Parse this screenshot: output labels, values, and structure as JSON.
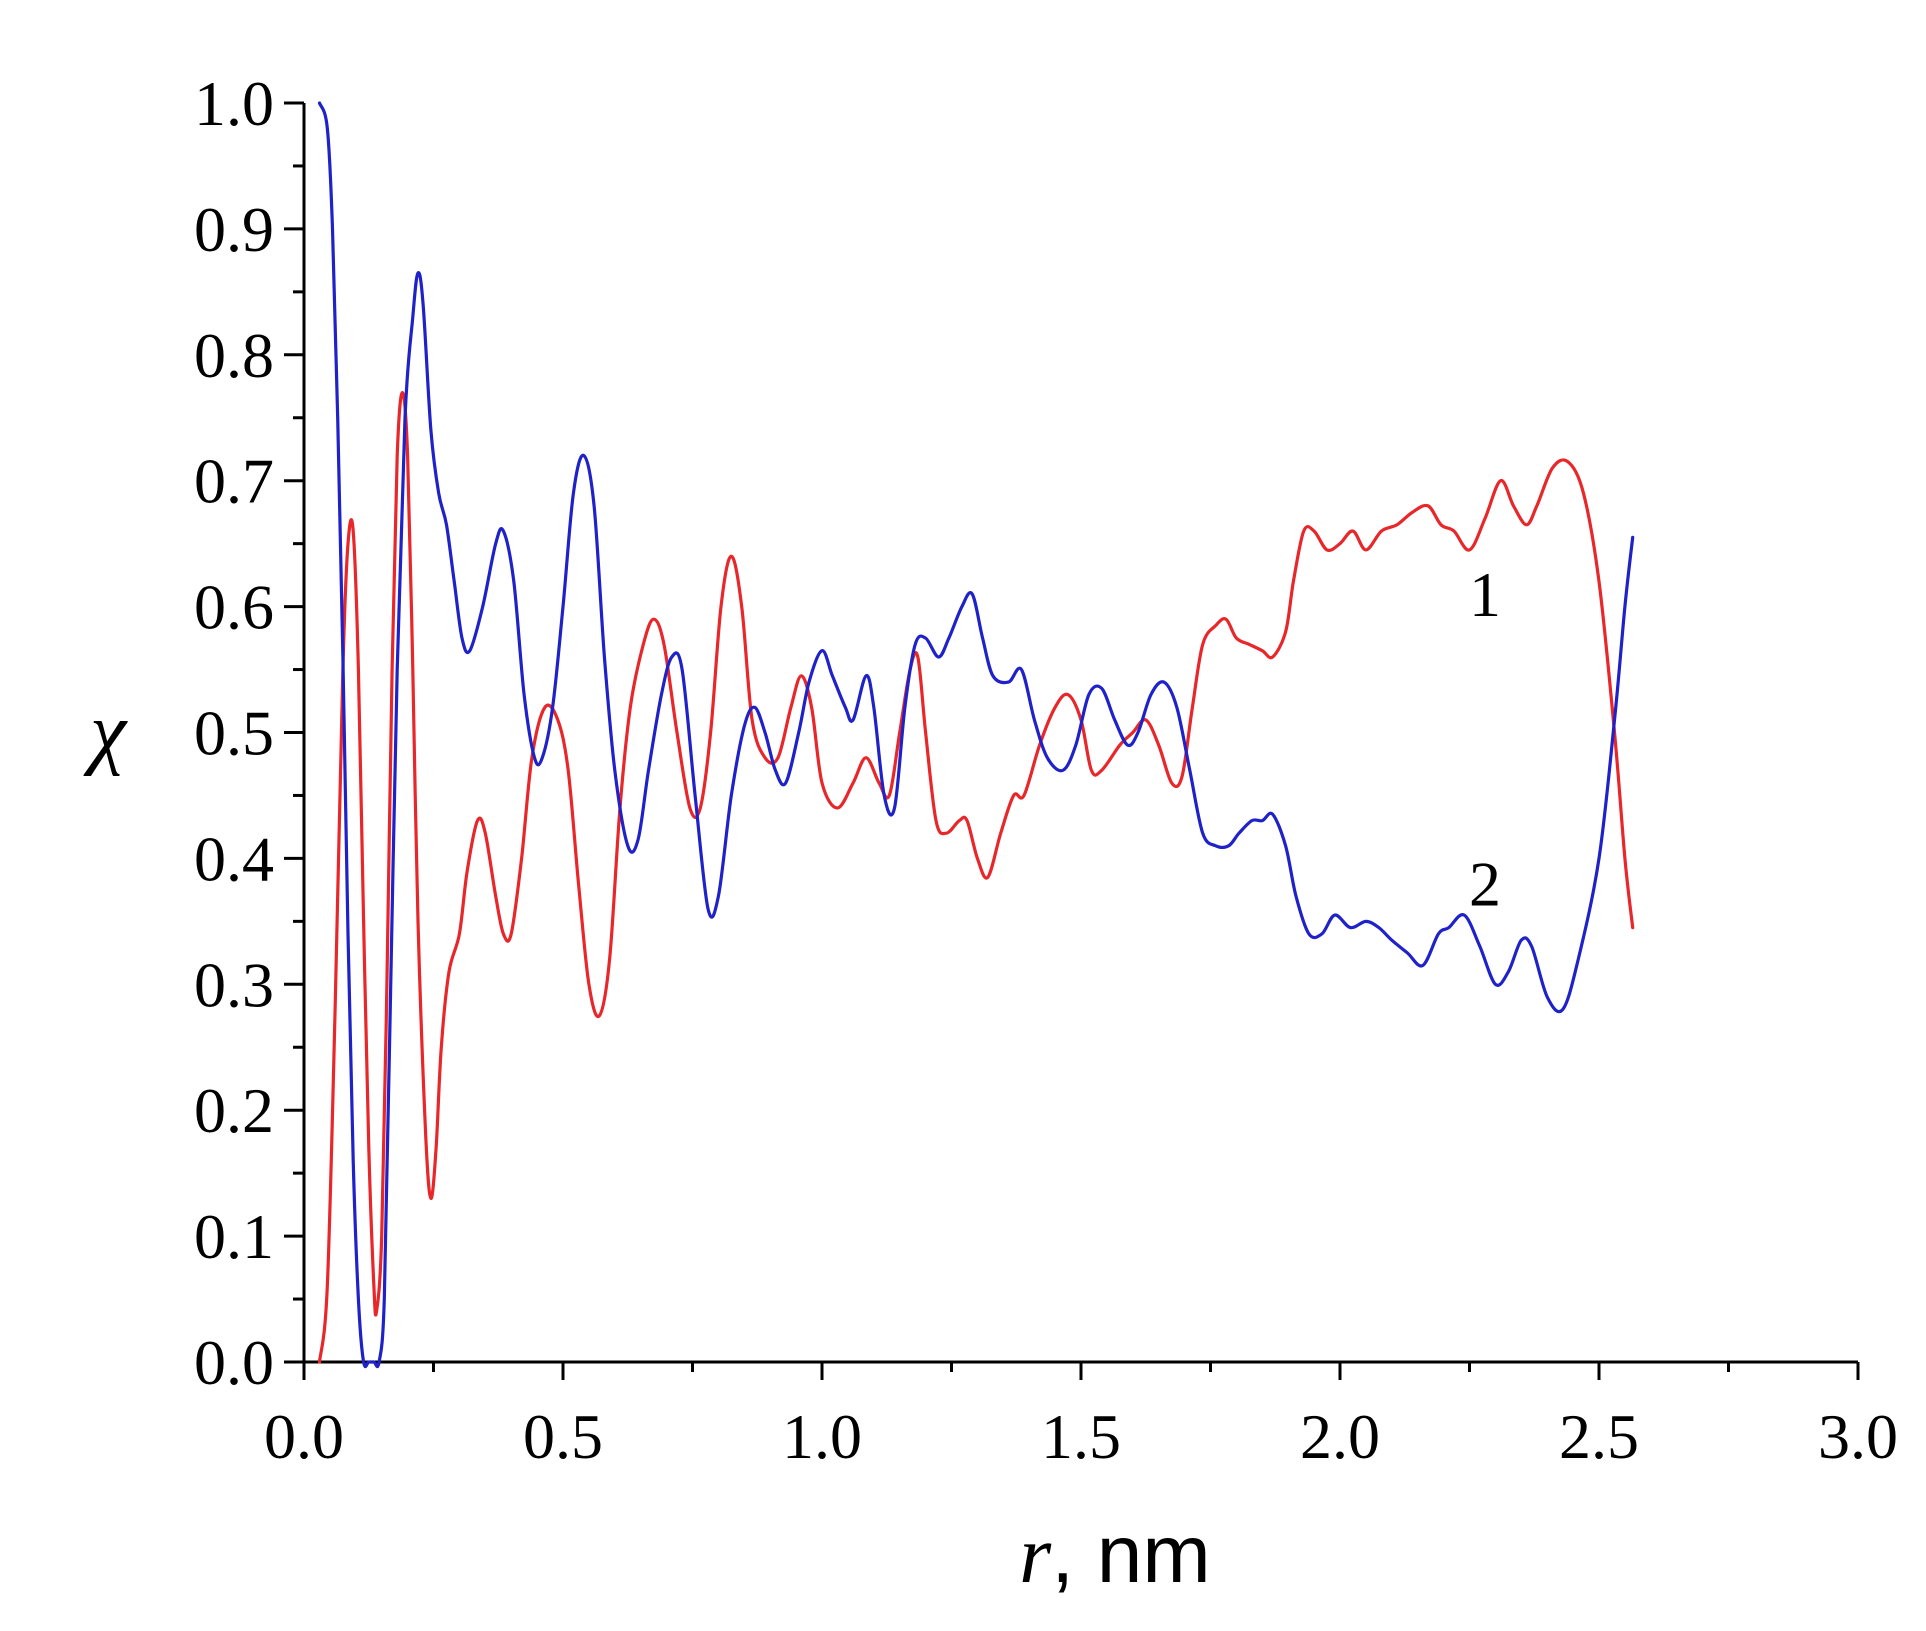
{
  "chart_data": {
    "type": "line",
    "xlabel": {
      "symbol": "r",
      "unit": ", nm"
    },
    "ylabel": "χ",
    "xlim": [
      0.0,
      3.0
    ],
    "ylim": [
      0.0,
      1.0
    ],
    "x_ticks": [
      0.0,
      0.5,
      1.0,
      1.5,
      2.0,
      2.5,
      3.0
    ],
    "x_tick_labels": [
      "0.0",
      "0.5",
      "1.0",
      "1.5",
      "2.0",
      "2.5",
      "3.0"
    ],
    "y_ticks": [
      0.0,
      0.1,
      0.2,
      0.3,
      0.4,
      0.5,
      0.6,
      0.7,
      0.8,
      0.9,
      1.0
    ],
    "y_tick_labels": [
      "0.0",
      "0.1",
      "0.2",
      "0.3",
      "0.4",
      "0.5",
      "0.6",
      "0.7",
      "0.8",
      "0.9",
      "1.0"
    ],
    "grid": false,
    "legend": "none",
    "series": [
      {
        "name": "1",
        "color": "#e8272a",
        "label_at": [
          2.28,
          0.61
        ],
        "points": [
          [
            0.03,
            0.0
          ],
          [
            0.045,
            0.06
          ],
          [
            0.06,
            0.28
          ],
          [
            0.075,
            0.55
          ],
          [
            0.085,
            0.65
          ],
          [
            0.095,
            0.66
          ],
          [
            0.105,
            0.55
          ],
          [
            0.115,
            0.35
          ],
          [
            0.125,
            0.17
          ],
          [
            0.135,
            0.06
          ],
          [
            0.14,
            0.04
          ],
          [
            0.15,
            0.1
          ],
          [
            0.16,
            0.3
          ],
          [
            0.17,
            0.55
          ],
          [
            0.18,
            0.72
          ],
          [
            0.19,
            0.77
          ],
          [
            0.2,
            0.72
          ],
          [
            0.21,
            0.55
          ],
          [
            0.22,
            0.35
          ],
          [
            0.235,
            0.18
          ],
          [
            0.245,
            0.13
          ],
          [
            0.255,
            0.17
          ],
          [
            0.265,
            0.25
          ],
          [
            0.28,
            0.31
          ],
          [
            0.3,
            0.34
          ],
          [
            0.315,
            0.39
          ],
          [
            0.335,
            0.43
          ],
          [
            0.35,
            0.42
          ],
          [
            0.37,
            0.37
          ],
          [
            0.385,
            0.34
          ],
          [
            0.4,
            0.34
          ],
          [
            0.42,
            0.4
          ],
          [
            0.44,
            0.48
          ],
          [
            0.465,
            0.52
          ],
          [
            0.49,
            0.51
          ],
          [
            0.51,
            0.47
          ],
          [
            0.53,
            0.38
          ],
          [
            0.55,
            0.3
          ],
          [
            0.57,
            0.275
          ],
          [
            0.59,
            0.32
          ],
          [
            0.61,
            0.44
          ],
          [
            0.63,
            0.52
          ],
          [
            0.655,
            0.57
          ],
          [
            0.675,
            0.59
          ],
          [
            0.695,
            0.57
          ],
          [
            0.72,
            0.5
          ],
          [
            0.745,
            0.44
          ],
          [
            0.765,
            0.44
          ],
          [
            0.785,
            0.5
          ],
          [
            0.805,
            0.6
          ],
          [
            0.825,
            0.64
          ],
          [
            0.845,
            0.6
          ],
          [
            0.865,
            0.51
          ],
          [
            0.89,
            0.48
          ],
          [
            0.915,
            0.48
          ],
          [
            0.94,
            0.52
          ],
          [
            0.96,
            0.545
          ],
          [
            0.98,
            0.52
          ],
          [
            1.0,
            0.46
          ],
          [
            1.03,
            0.44
          ],
          [
            1.06,
            0.46
          ],
          [
            1.085,
            0.48
          ],
          [
            1.11,
            0.46
          ],
          [
            1.13,
            0.45
          ],
          [
            1.15,
            0.5
          ],
          [
            1.17,
            0.55
          ],
          [
            1.185,
            0.56
          ],
          [
            1.2,
            0.5
          ],
          [
            1.22,
            0.43
          ],
          [
            1.24,
            0.42
          ],
          [
            1.265,
            0.43
          ],
          [
            1.28,
            0.43
          ],
          [
            1.3,
            0.4
          ],
          [
            1.32,
            0.385
          ],
          [
            1.345,
            0.42
          ],
          [
            1.37,
            0.45
          ],
          [
            1.39,
            0.45
          ],
          [
            1.42,
            0.49
          ],
          [
            1.45,
            0.52
          ],
          [
            1.475,
            0.53
          ],
          [
            1.5,
            0.51
          ],
          [
            1.52,
            0.47
          ],
          [
            1.54,
            0.47
          ],
          [
            1.575,
            0.49
          ],
          [
            1.6,
            0.5
          ],
          [
            1.625,
            0.51
          ],
          [
            1.65,
            0.49
          ],
          [
            1.675,
            0.46
          ],
          [
            1.695,
            0.465
          ],
          [
            1.715,
            0.52
          ],
          [
            1.735,
            0.57
          ],
          [
            1.76,
            0.585
          ],
          [
            1.78,
            0.59
          ],
          [
            1.8,
            0.575
          ],
          [
            1.825,
            0.57
          ],
          [
            1.85,
            0.565
          ],
          [
            1.87,
            0.56
          ],
          [
            1.895,
            0.58
          ],
          [
            1.91,
            0.62
          ],
          [
            1.93,
            0.66
          ],
          [
            1.95,
            0.66
          ],
          [
            1.975,
            0.645
          ],
          [
            2.0,
            0.65
          ],
          [
            2.025,
            0.66
          ],
          [
            2.05,
            0.645
          ],
          [
            2.08,
            0.66
          ],
          [
            2.11,
            0.665
          ],
          [
            2.14,
            0.675
          ],
          [
            2.17,
            0.68
          ],
          [
            2.195,
            0.665
          ],
          [
            2.22,
            0.66
          ],
          [
            2.25,
            0.645
          ],
          [
            2.28,
            0.67
          ],
          [
            2.31,
            0.7
          ],
          [
            2.335,
            0.68
          ],
          [
            2.36,
            0.665
          ],
          [
            2.38,
            0.68
          ],
          [
            2.41,
            0.71
          ],
          [
            2.44,
            0.715
          ],
          [
            2.47,
            0.69
          ],
          [
            2.5,
            0.62
          ],
          [
            2.53,
            0.5
          ],
          [
            2.55,
            0.4
          ],
          [
            2.565,
            0.345
          ]
        ]
      },
      {
        "name": "2",
        "color": "#1f22c8",
        "label_at": [
          2.28,
          0.38
        ],
        "points": [
          [
            0.03,
            1.0
          ],
          [
            0.045,
            0.98
          ],
          [
            0.055,
            0.9
          ],
          [
            0.065,
            0.75
          ],
          [
            0.075,
            0.56
          ],
          [
            0.085,
            0.34
          ],
          [
            0.095,
            0.16
          ],
          [
            0.105,
            0.05
          ],
          [
            0.115,
            0.0
          ],
          [
            0.125,
            0.0
          ],
          [
            0.135,
            0.0
          ],
          [
            0.145,
            0.0
          ],
          [
            0.155,
            0.05
          ],
          [
            0.165,
            0.25
          ],
          [
            0.18,
            0.55
          ],
          [
            0.195,
            0.75
          ],
          [
            0.21,
            0.83
          ],
          [
            0.22,
            0.865
          ],
          [
            0.23,
            0.84
          ],
          [
            0.245,
            0.74
          ],
          [
            0.26,
            0.69
          ],
          [
            0.275,
            0.665
          ],
          [
            0.29,
            0.62
          ],
          [
            0.305,
            0.575
          ],
          [
            0.32,
            0.565
          ],
          [
            0.345,
            0.6
          ],
          [
            0.37,
            0.65
          ],
          [
            0.385,
            0.66
          ],
          [
            0.405,
            0.62
          ],
          [
            0.425,
            0.53
          ],
          [
            0.445,
            0.48
          ],
          [
            0.46,
            0.48
          ],
          [
            0.48,
            0.52
          ],
          [
            0.5,
            0.6
          ],
          [
            0.52,
            0.69
          ],
          [
            0.54,
            0.72
          ],
          [
            0.56,
            0.68
          ],
          [
            0.58,
            0.56
          ],
          [
            0.6,
            0.47
          ],
          [
            0.625,
            0.41
          ],
          [
            0.645,
            0.415
          ],
          [
            0.665,
            0.47
          ],
          [
            0.69,
            0.53
          ],
          [
            0.71,
            0.56
          ],
          [
            0.73,
            0.55
          ],
          [
            0.755,
            0.45
          ],
          [
            0.78,
            0.36
          ],
          [
            0.8,
            0.37
          ],
          [
            0.825,
            0.45
          ],
          [
            0.85,
            0.505
          ],
          [
            0.87,
            0.52
          ],
          [
            0.89,
            0.5
          ],
          [
            0.91,
            0.47
          ],
          [
            0.93,
            0.46
          ],
          [
            0.955,
            0.5
          ],
          [
            0.975,
            0.54
          ],
          [
            1.0,
            0.565
          ],
          [
            1.02,
            0.545
          ],
          [
            1.045,
            0.52
          ],
          [
            1.06,
            0.51
          ],
          [
            1.085,
            0.545
          ],
          [
            1.1,
            0.52
          ],
          [
            1.12,
            0.45
          ],
          [
            1.14,
            0.44
          ],
          [
            1.16,
            0.52
          ],
          [
            1.18,
            0.57
          ],
          [
            1.2,
            0.575
          ],
          [
            1.225,
            0.56
          ],
          [
            1.245,
            0.575
          ],
          [
            1.27,
            0.6
          ],
          [
            1.29,
            0.61
          ],
          [
            1.31,
            0.575
          ],
          [
            1.33,
            0.545
          ],
          [
            1.36,
            0.54
          ],
          [
            1.385,
            0.55
          ],
          [
            1.41,
            0.51
          ],
          [
            1.435,
            0.48
          ],
          [
            1.465,
            0.47
          ],
          [
            1.49,
            0.49
          ],
          [
            1.515,
            0.53
          ],
          [
            1.54,
            0.535
          ],
          [
            1.565,
            0.51
          ],
          [
            1.59,
            0.49
          ],
          [
            1.61,
            0.5
          ],
          [
            1.635,
            0.53
          ],
          [
            1.66,
            0.54
          ],
          [
            1.685,
            0.52
          ],
          [
            1.71,
            0.47
          ],
          [
            1.735,
            0.42
          ],
          [
            1.76,
            0.41
          ],
          [
            1.785,
            0.41
          ],
          [
            1.805,
            0.42
          ],
          [
            1.83,
            0.43
          ],
          [
            1.85,
            0.43
          ],
          [
            1.87,
            0.435
          ],
          [
            1.895,
            0.41
          ],
          [
            1.915,
            0.37
          ],
          [
            1.94,
            0.34
          ],
          [
            1.965,
            0.34
          ],
          [
            1.99,
            0.355
          ],
          [
            2.02,
            0.345
          ],
          [
            2.05,
            0.35
          ],
          [
            2.075,
            0.345
          ],
          [
            2.1,
            0.335
          ],
          [
            2.13,
            0.325
          ],
          [
            2.16,
            0.315
          ],
          [
            2.19,
            0.34
          ],
          [
            2.21,
            0.345
          ],
          [
            2.24,
            0.355
          ],
          [
            2.27,
            0.33
          ],
          [
            2.3,
            0.3
          ],
          [
            2.325,
            0.31
          ],
          [
            2.35,
            0.335
          ],
          [
            2.37,
            0.33
          ],
          [
            2.4,
            0.29
          ],
          [
            2.43,
            0.28
          ],
          [
            2.46,
            0.32
          ],
          [
            2.5,
            0.4
          ],
          [
            2.53,
            0.51
          ],
          [
            2.55,
            0.6
          ],
          [
            2.565,
            0.655
          ]
        ]
      }
    ]
  }
}
